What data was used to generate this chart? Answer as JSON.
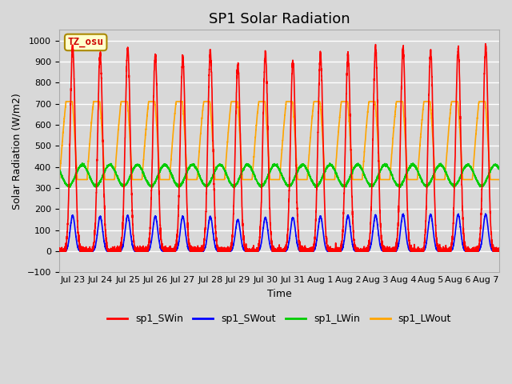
{
  "title": "SP1 Solar Radiation",
  "xlabel": "Time",
  "ylabel": "Solar Radiation (W/m2)",
  "ylim": [
    -100,
    1050
  ],
  "colors": {
    "sp1_SWin": "#ff0000",
    "sp1_SWout": "#0000ff",
    "sp1_LWin": "#00cc00",
    "sp1_LWout": "#ffa500"
  },
  "xtick_labels": [
    "Jul 23",
    "Jul 24",
    "Jul 25",
    "Jul 26",
    "Jul 27",
    "Jul 28",
    "Jul 29",
    "Jul 30",
    "Jul 31",
    "Aug 1",
    "Aug 2",
    "Aug 3",
    "Aug 4",
    "Aug 5",
    "Aug 6",
    "Aug 7"
  ],
  "annotation_text": "TZ_osu",
  "plot_bg_color": "#d8d8d8",
  "grid_color": "#ffffff",
  "title_fontsize": 13,
  "axis_label_fontsize": 9,
  "tick_fontsize": 8,
  "legend_fontsize": 9,
  "linewidth": 1.2,
  "n_points_per_day": 288,
  "n_days": 16,
  "SWin_peaks": [
    970,
    935,
    965,
    925,
    920,
    950,
    885,
    940,
    905,
    930,
    935,
    960,
    960,
    950,
    960,
    970
  ],
  "SWout_peaks": [
    170,
    165,
    170,
    165,
    165,
    165,
    150,
    160,
    160,
    165,
    170,
    170,
    175,
    175,
    175,
    175
  ],
  "LWin_base": 360,
  "LWin_amplitude": 50,
  "LWout_base": 390,
  "LWout_amplitude": 260,
  "yticks": [
    -100,
    0,
    100,
    200,
    300,
    400,
    500,
    600,
    700,
    800,
    900,
    1000
  ]
}
